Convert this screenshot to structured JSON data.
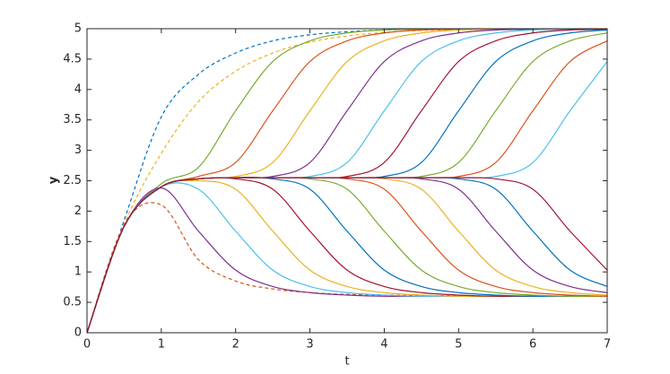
{
  "chart_data": {
    "type": "line",
    "xlabel": "t",
    "ylabel": "y",
    "xlim": [
      0,
      7
    ],
    "ylim": [
      0,
      5
    ],
    "xticks": [
      0,
      1,
      2,
      3,
      4,
      5,
      6,
      7
    ],
    "yticks": [
      0,
      0.5,
      1,
      1.5,
      2,
      2.5,
      3,
      3.5,
      4,
      4.5,
      5
    ],
    "box": true,
    "grid": false,
    "x": [
      0,
      0.5,
      1,
      1.5,
      2,
      2.5,
      3,
      3.5,
      4,
      4.5,
      5,
      5.5,
      6,
      6.5,
      7
    ],
    "series": [
      {
        "color": "#0072BD",
        "dashed": true,
        "values": [
          0,
          1.85,
          3.55,
          4.25,
          4.6,
          4.8,
          4.9,
          4.95,
          4.98,
          4.99,
          4.99,
          5,
          5,
          5,
          5
        ]
      },
      {
        "color": "#EDB120",
        "dashed": true,
        "values": [
          0,
          1.78,
          2.95,
          3.8,
          4.3,
          4.6,
          4.78,
          4.88,
          4.94,
          4.97,
          4.98,
          4.99,
          5,
          5,
          5
        ]
      },
      {
        "color": "#D95319",
        "dashed": true,
        "values": [
          0,
          1.78,
          2.1,
          1.2,
          0.85,
          0.72,
          0.66,
          0.63,
          0.62,
          0.61,
          0.61,
          0.6,
          0.6,
          0.6,
          0.6
        ]
      },
      {
        "color": "#77AC30",
        "values": [
          0,
          1.75,
          2.45,
          2.72,
          3.65,
          4.46,
          4.8,
          4.93,
          4.98,
          4.99,
          4.99,
          4.99,
          4.99,
          4.99,
          4.99
        ]
      },
      {
        "color": "#D95319",
        "values": [
          0,
          1.75,
          2.4,
          2.57,
          2.8,
          3.65,
          4.46,
          4.8,
          4.93,
          4.98,
          4.99,
          4.99,
          4.99,
          4.99,
          4.99
        ]
      },
      {
        "color": "#EDB120",
        "values": [
          0,
          1.75,
          2.4,
          2.53,
          2.57,
          2.8,
          3.65,
          4.46,
          4.8,
          4.93,
          4.98,
          4.99,
          4.99,
          4.99,
          4.99
        ]
      },
      {
        "color": "#7E2F8E",
        "values": [
          0,
          1.75,
          2.4,
          2.53,
          2.55,
          2.57,
          2.8,
          3.65,
          4.46,
          4.8,
          4.93,
          4.98,
          4.99,
          4.99,
          4.99
        ]
      },
      {
        "color": "#4DBEEE",
        "values": [
          0,
          1.75,
          2.4,
          2.53,
          2.55,
          2.55,
          2.57,
          2.8,
          3.65,
          4.46,
          4.8,
          4.93,
          4.98,
          4.99,
          4.99
        ]
      },
      {
        "color": "#A2142F",
        "values": [
          0,
          1.75,
          2.4,
          2.53,
          2.55,
          2.55,
          2.55,
          2.57,
          2.8,
          3.65,
          4.46,
          4.8,
          4.93,
          4.98,
          4.99
        ]
      },
      {
        "color": "#0072BD",
        "values": [
          0,
          1.75,
          2.4,
          2.53,
          2.55,
          2.55,
          2.55,
          2.55,
          2.57,
          2.8,
          3.65,
          4.46,
          4.8,
          4.93,
          4.98
        ]
      },
      {
        "color": "#77AC30",
        "values": [
          0,
          1.75,
          2.4,
          2.53,
          2.55,
          2.55,
          2.55,
          2.55,
          2.55,
          2.57,
          2.8,
          3.65,
          4.46,
          4.8,
          4.93
        ]
      },
      {
        "color": "#D95319",
        "values": [
          0,
          1.75,
          2.4,
          2.53,
          2.55,
          2.55,
          2.55,
          2.55,
          2.55,
          2.55,
          2.57,
          2.8,
          3.65,
          4.46,
          4.8
        ]
      },
      {
        "color": "#4DBEEE",
        "values": [
          0,
          1.75,
          2.4,
          2.53,
          2.55,
          2.55,
          2.55,
          2.55,
          2.55,
          2.55,
          2.55,
          2.57,
          2.8,
          3.65,
          4.46
        ]
      },
      {
        "color": "#7E2F8E",
        "values": [
          0,
          1.75,
          2.38,
          1.67,
          1.03,
          0.76,
          0.66,
          0.62,
          0.6,
          0.6,
          0.6,
          0.6,
          0.6,
          0.6,
          0.6
        ]
      },
      {
        "color": "#4DBEEE",
        "values": [
          0,
          1.75,
          2.4,
          2.36,
          1.67,
          1.03,
          0.76,
          0.66,
          0.62,
          0.6,
          0.6,
          0.6,
          0.6,
          0.6,
          0.6
        ]
      },
      {
        "color": "#EDB120",
        "values": [
          0,
          1.75,
          2.4,
          2.5,
          2.36,
          1.67,
          1.03,
          0.76,
          0.66,
          0.62,
          0.6,
          0.6,
          0.6,
          0.6,
          0.6
        ]
      },
      {
        "color": "#A2142F",
        "values": [
          0,
          1.75,
          2.4,
          2.53,
          2.53,
          2.36,
          1.67,
          1.03,
          0.76,
          0.66,
          0.62,
          0.6,
          0.6,
          0.6,
          0.6
        ]
      },
      {
        "color": "#0072BD",
        "values": [
          0,
          1.75,
          2.4,
          2.53,
          2.55,
          2.53,
          2.36,
          1.67,
          1.03,
          0.76,
          0.66,
          0.62,
          0.6,
          0.6,
          0.6
        ]
      },
      {
        "color": "#77AC30",
        "values": [
          0,
          1.75,
          2.4,
          2.53,
          2.55,
          2.55,
          2.53,
          2.36,
          1.67,
          1.03,
          0.76,
          0.66,
          0.62,
          0.6,
          0.6
        ]
      },
      {
        "color": "#D95319",
        "values": [
          0,
          1.75,
          2.4,
          2.53,
          2.55,
          2.55,
          2.55,
          2.53,
          2.36,
          1.67,
          1.03,
          0.76,
          0.66,
          0.62,
          0.6
        ]
      },
      {
        "color": "#EDB120",
        "values": [
          0,
          1.75,
          2.4,
          2.53,
          2.55,
          2.55,
          2.55,
          2.55,
          2.53,
          2.36,
          1.67,
          1.03,
          0.76,
          0.66,
          0.62
        ]
      },
      {
        "color": "#7E2F8E",
        "values": [
          0,
          1.75,
          2.4,
          2.53,
          2.55,
          2.55,
          2.55,
          2.55,
          2.55,
          2.53,
          2.36,
          1.67,
          1.03,
          0.76,
          0.66
        ]
      },
      {
        "color": "#0072BD",
        "values": [
          0,
          1.75,
          2.4,
          2.53,
          2.55,
          2.55,
          2.55,
          2.55,
          2.55,
          2.55,
          2.53,
          2.36,
          1.67,
          1.03,
          0.76
        ]
      },
      {
        "color": "#A2142F",
        "values": [
          0,
          1.75,
          2.4,
          2.53,
          2.55,
          2.55,
          2.55,
          2.55,
          2.55,
          2.55,
          2.55,
          2.53,
          2.36,
          1.67,
          1.03
        ]
      }
    ]
  }
}
